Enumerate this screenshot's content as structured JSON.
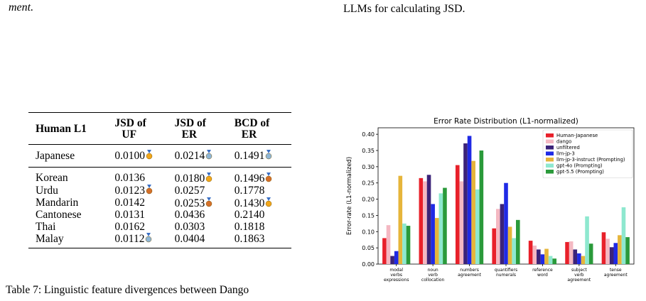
{
  "fragments": {
    "left_top": "ment.",
    "right_top": "LLMs for calculating JSD."
  },
  "table": {
    "headers": [
      [
        "Human L1"
      ],
      [
        "JSD of",
        "UF"
      ],
      [
        "JSD of",
        "ER"
      ],
      [
        "BCD of",
        "ER"
      ]
    ],
    "rows": [
      {
        "l1": "Japanese",
        "uf": "0.0100",
        "uf_medal": "gold",
        "er": "0.0214",
        "er_medal": "silver",
        "bcd": "0.1491",
        "bcd_medal": "silver"
      },
      {
        "l1": "Korean",
        "uf": "0.0136",
        "uf_medal": "",
        "er": "0.0180",
        "er_medal": "gold",
        "bcd": "0.1496",
        "bcd_medal": "bronze"
      },
      {
        "l1": "Urdu",
        "uf": "0.0123",
        "uf_medal": "bronze",
        "er": "0.0257",
        "er_medal": "",
        "bcd": "0.1778",
        "bcd_medal": ""
      },
      {
        "l1": "Mandarin",
        "uf": "0.0142",
        "uf_medal": "",
        "er": "0.0253",
        "er_medal": "bronze",
        "bcd": "0.1430",
        "bcd_medal": "gold"
      },
      {
        "l1": "Cantonese",
        "uf": "0.0131",
        "uf_medal": "",
        "er": "0.0436",
        "er_medal": "",
        "bcd": "0.2140",
        "bcd_medal": ""
      },
      {
        "l1": "Thai",
        "uf": "0.0162",
        "uf_medal": "",
        "er": "0.0303",
        "er_medal": "",
        "bcd": "0.1818",
        "bcd_medal": ""
      },
      {
        "l1": "Malay",
        "uf": "0.0112",
        "uf_medal": "silver",
        "er": "0.0404",
        "er_medal": "",
        "bcd": "0.1863",
        "bcd_medal": ""
      }
    ],
    "medal_colors": {
      "gold": "#f2a71b",
      "silver": "#8fb6d6",
      "bronze": "#d5702a"
    }
  },
  "caption": "Table 7: Linguistic feature divergences between Dango",
  "chart_data": {
    "type": "bar",
    "title": "Error Rate Distribution (L1-normalized)",
    "xlabel": "",
    "ylabel": "Error-rate (L1-normalized)",
    "ylim": [
      0,
      0.42
    ],
    "yticks": [
      0.0,
      0.05,
      0.1,
      0.15,
      0.2,
      0.25,
      0.3,
      0.35,
      0.4
    ],
    "ytick_labels": [
      "0.00",
      "0.05",
      "0.10",
      "0.15",
      "0.20",
      "0.25",
      "0.30",
      "0.35",
      "0.40"
    ],
    "grid": false,
    "legend_position": "top-right",
    "categories": [
      [
        "modal",
        "verbs",
        "expressions"
      ],
      [
        "noun",
        "verb",
        "collocation"
      ],
      [
        "numbers",
        "agreement"
      ],
      [
        "quantifiers",
        "numerals"
      ],
      [
        "reference",
        "word"
      ],
      [
        "subject",
        "verb",
        "agreement"
      ],
      [
        "tense",
        "agreement"
      ]
    ],
    "series": [
      {
        "name": "Human-Japanese",
        "color": "#e8202a",
        "values": [
          0.08,
          0.265,
          0.305,
          0.11,
          0.072,
          0.068,
          0.098
        ]
      },
      {
        "name": "dango",
        "color": "#f4b8c2",
        "values": [
          0.12,
          0.255,
          0.255,
          0.17,
          0.057,
          0.07,
          0.078
        ]
      },
      {
        "name": "unfiltered",
        "color": "#3b2379",
        "values": [
          0.025,
          0.275,
          0.372,
          0.185,
          0.045,
          0.045,
          0.052
        ]
      },
      {
        "name": "llm-jp-3",
        "color": "#1f2ae5",
        "values": [
          0.04,
          0.185,
          0.395,
          0.25,
          0.03,
          0.033,
          0.065
        ]
      },
      {
        "name": "llm-jp-3-instruct (Prompting)",
        "color": "#e6b53a",
        "values": [
          0.272,
          0.142,
          0.318,
          0.115,
          0.047,
          0.025,
          0.089
        ]
      },
      {
        "name": "gpt-4o (Prompting)",
        "color": "#8ee8cf",
        "values": [
          0.125,
          0.218,
          0.23,
          0.08,
          0.025,
          0.147,
          0.175
        ]
      },
      {
        "name": "gpt-5.5 (Prompting)",
        "color": "#2a9a3a",
        "values": [
          0.118,
          0.235,
          0.35,
          0.136,
          0.017,
          0.063,
          0.083
        ]
      }
    ]
  }
}
